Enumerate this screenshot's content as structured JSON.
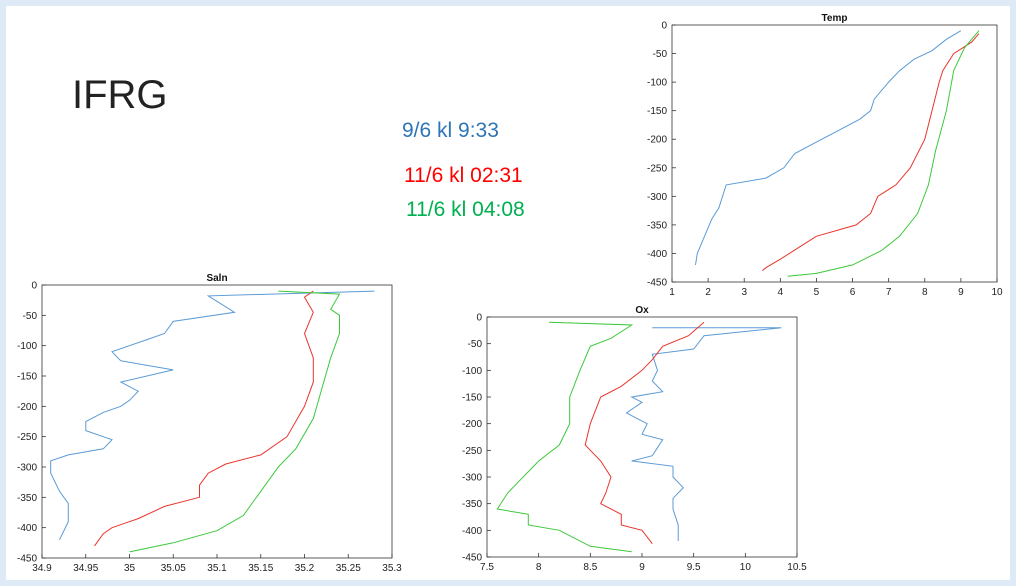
{
  "header": {
    "title": "IFRG"
  },
  "legend": [
    {
      "label": "9/6 kl 9:33",
      "color": "#2e75b6"
    },
    {
      "label": "11/6 kl 02:31",
      "color": "#ff0000"
    },
    {
      "label": "11/6 kl 04:08",
      "color": "#00b050"
    }
  ],
  "chart_data": [
    {
      "type": "line",
      "title": "Temp",
      "xlim": [
        1,
        10
      ],
      "xticks": [
        1,
        2,
        3,
        4,
        5,
        6,
        7,
        8,
        9,
        10
      ],
      "ylim": [
        -450,
        0
      ],
      "yticks": [
        0,
        -50,
        -100,
        -150,
        -200,
        -250,
        -300,
        -350,
        -400,
        -450
      ],
      "series": [
        {
          "color": "#5b9bd5",
          "x": [
            9,
            8.6,
            8.2,
            7.7,
            7.3,
            7,
            6.8,
            6.6,
            6.5,
            6.2,
            5.6,
            5,
            4.4,
            4.1,
            3.6,
            2.5,
            2.3,
            2.1,
            1.9,
            1.7,
            1.65
          ],
          "values": [
            -10,
            -25,
            -45,
            -60,
            -80,
            -100,
            -115,
            -130,
            -150,
            -165,
            -185,
            -205,
            -225,
            -250,
            -268,
            -280,
            -320,
            -340,
            -370,
            -400,
            -420
          ]
        },
        {
          "color": "#e8352c",
          "x": [
            9.5,
            9.3,
            8.8,
            8.5,
            8.4,
            8.2,
            8,
            7.6,
            7.2,
            6.7,
            6.5,
            6.1,
            5,
            4.5,
            4,
            3.6,
            3.5
          ],
          "values": [
            -15,
            -30,
            -50,
            -80,
            -100,
            -150,
            -200,
            -250,
            -280,
            -300,
            -330,
            -350,
            -370,
            -390,
            -410,
            -425,
            -430
          ]
        },
        {
          "color": "#3cc83c",
          "x": [
            9.5,
            9.1,
            8.8,
            8.6,
            8.3,
            8.1,
            7.8,
            7.3,
            6.8,
            6,
            5,
            4.2
          ],
          "values": [
            -10,
            -40,
            -80,
            -150,
            -220,
            -280,
            -330,
            -370,
            -395,
            -420,
            -435,
            -440
          ]
        }
      ]
    },
    {
      "type": "line",
      "title": "Saln",
      "xlim": [
        34.9,
        35.3
      ],
      "xticks": [
        34.9,
        34.95,
        35,
        35.05,
        35.1,
        35.15,
        35.2,
        35.25,
        35.3
      ],
      "ylim": [
        -450,
        0
      ],
      "yticks": [
        0,
        -50,
        -100,
        -150,
        -200,
        -250,
        -300,
        -350,
        -400,
        -450
      ],
      "series": [
        {
          "color": "#5b9bd5",
          "x": [
            35.28,
            35.09,
            35.12,
            35.05,
            35.04,
            35.02,
            34.98,
            34.99,
            35.05,
            34.99,
            35.01,
            35,
            34.99,
            34.97,
            34.95,
            34.95,
            34.98,
            34.97,
            34.93,
            34.91,
            34.91,
            34.92,
            34.93,
            34.93,
            34.92
          ],
          "values": [
            -10,
            -18,
            -45,
            -60,
            -80,
            -90,
            -110,
            -125,
            -140,
            -160,
            -175,
            -190,
            -200,
            -210,
            -225,
            -240,
            -255,
            -270,
            -280,
            -290,
            -310,
            -340,
            -360,
            -390,
            -420
          ]
        },
        {
          "color": "#e8352c",
          "x": [
            35.21,
            35.2,
            35.21,
            35.2,
            35.21,
            35.21,
            35.2,
            35.18,
            35.15,
            35.11,
            35.09,
            35.08,
            35.08,
            35.04,
            35.01,
            34.98,
            34.97,
            34.96
          ],
          "values": [
            -10,
            -20,
            -45,
            -80,
            -120,
            -160,
            -200,
            -250,
            -280,
            -295,
            -310,
            -330,
            -350,
            -365,
            -385,
            -400,
            -410,
            -430
          ]
        },
        {
          "color": "#3cc83c",
          "x": [
            35.17,
            35.24,
            35.23,
            35.24,
            35.24,
            35.23,
            35.22,
            35.21,
            35.19,
            35.17,
            35.15,
            35.13,
            35.1,
            35.05,
            35
          ],
          "values": [
            -10,
            -15,
            -40,
            -50,
            -80,
            -120,
            -170,
            -220,
            -270,
            -300,
            -340,
            -380,
            -405,
            -425,
            -440
          ]
        }
      ]
    },
    {
      "type": "line",
      "title": "Ox",
      "xlim": [
        7.5,
        10.5
      ],
      "xticks": [
        7.5,
        8,
        8.5,
        9,
        9.5,
        10,
        10.5
      ],
      "ylim": [
        -450,
        0
      ],
      "yticks": [
        0,
        -50,
        -100,
        -150,
        -200,
        -250,
        -300,
        -350,
        -400,
        -450
      ],
      "series": [
        {
          "color": "#5b9bd5",
          "x": [
            9.1,
            10.35,
            9.6,
            9.5,
            9.1,
            9.15,
            9.1,
            9.2,
            8.9,
            9,
            8.85,
            9.05,
            9,
            9.2,
            9.1,
            8.9,
            9.3,
            9.3,
            9.4,
            9.3,
            9.3,
            9.35,
            9.35
          ],
          "values": [
            -20,
            -20,
            -35,
            -60,
            -70,
            -100,
            -120,
            -140,
            -150,
            -160,
            -180,
            -200,
            -220,
            -230,
            -260,
            -270,
            -280,
            -300,
            -320,
            -340,
            -360,
            -390,
            -420
          ]
        },
        {
          "color": "#e8352c",
          "x": [
            9.6,
            9.45,
            9.2,
            9.1,
            9,
            8.8,
            8.6,
            8.5,
            8.45,
            8.6,
            8.7,
            8.65,
            8.6,
            8.8,
            8.8,
            9,
            9.1
          ],
          "values": [
            -10,
            -35,
            -55,
            -80,
            -100,
            -130,
            -150,
            -200,
            -240,
            -270,
            -300,
            -330,
            -350,
            -370,
            -390,
            -400,
            -425
          ]
        },
        {
          "color": "#3cc83c",
          "x": [
            8.1,
            8.9,
            8.7,
            8.5,
            8.4,
            8.3,
            8.3,
            8.2,
            8,
            7.8,
            7.7,
            7.6,
            7.9,
            7.9,
            8.2,
            8.5,
            8.9
          ],
          "values": [
            -10,
            -15,
            -40,
            -55,
            -100,
            -150,
            -200,
            -240,
            -270,
            -310,
            -330,
            -360,
            -370,
            -390,
            -400,
            -430,
            -440
          ]
        }
      ]
    }
  ]
}
